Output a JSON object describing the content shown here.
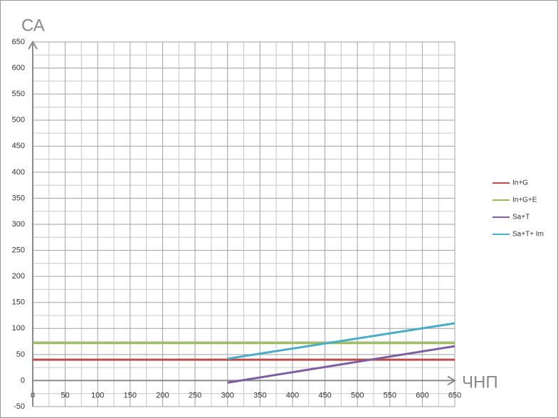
{
  "chart_data": {
    "type": "line",
    "x_label": "ЧНП",
    "y_label": "СА",
    "xlim": [
      0,
      650
    ],
    "xticks": [
      0,
      50,
      100,
      150,
      200,
      250,
      300,
      350,
      400,
      450,
      500,
      550,
      600,
      650
    ],
    "ylim": [
      -50,
      650
    ],
    "yticks": [
      -50,
      0,
      50,
      100,
      150,
      200,
      250,
      300,
      350,
      400,
      450,
      500,
      550,
      600,
      650
    ],
    "grid": true,
    "legend": "right",
    "series": [
      {
        "name": "In+G",
        "color": "#be4b48",
        "x": [
          0,
          650
        ],
        "values": [
          40,
          40
        ]
      },
      {
        "name": "In+G+E",
        "color": "#9bbb59",
        "x": [
          0,
          650
        ],
        "values": [
          72,
          72
        ]
      },
      {
        "name": "Sa+T",
        "color": "#7d5fa0",
        "x": [
          300,
          650
        ],
        "values": [
          -4,
          66
        ]
      },
      {
        "name": "Sa+T+ Im",
        "color": "#4bacc6",
        "x": [
          300,
          650
        ],
        "values": [
          42,
          110
        ]
      }
    ]
  }
}
